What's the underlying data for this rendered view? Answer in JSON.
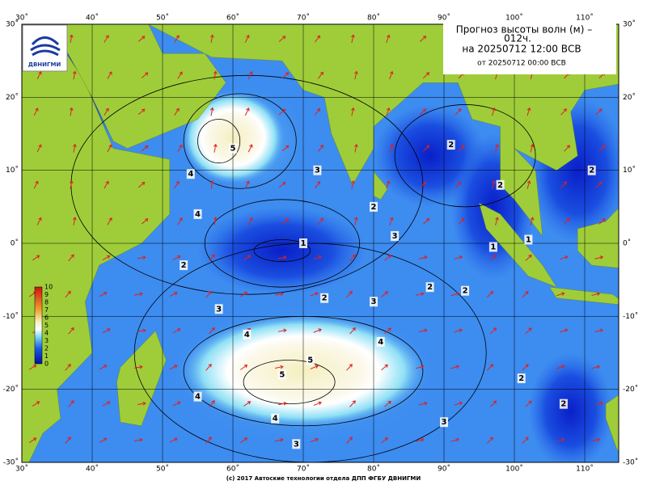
{
  "header": {
    "title_line1": "Прогноз высоты волн (м) –",
    "title_line2": "012ч.",
    "valid": "на 20250712 12:00 ВСВ",
    "issued": "от 20250712 00:00 ВСВ"
  },
  "logo": {
    "text": "ДВНИГМИ"
  },
  "map": {
    "lon_ticks": [
      {
        "value": 30,
        "label": "30˚"
      },
      {
        "value": 40,
        "label": "40˚"
      },
      {
        "value": 50,
        "label": "50˚"
      },
      {
        "value": 60,
        "label": "60˚"
      },
      {
        "value": 70,
        "label": "70˚"
      },
      {
        "value": 80,
        "label": "80˚"
      },
      {
        "value": 90,
        "label": "90˚"
      },
      {
        "value": 100,
        "label": "100˚"
      },
      {
        "value": 110,
        "label": "110˚"
      }
    ],
    "lat_ticks": [
      {
        "value": 30,
        "label": "30˚"
      },
      {
        "value": 20,
        "label": "20˚"
      },
      {
        "value": 10,
        "label": "10˚"
      },
      {
        "value": 0,
        "label": "0˚"
      },
      {
        "value": -10,
        "label": "-10˚"
      },
      {
        "value": -20,
        "label": "-20˚"
      },
      {
        "value": -30,
        "label": "-30˚"
      }
    ],
    "contour_labels": [
      4,
      5,
      4,
      3,
      2,
      2,
      1,
      2,
      3,
      2,
      3,
      4,
      4,
      5,
      5,
      4,
      4,
      3,
      3,
      2,
      2,
      2,
      2,
      1,
      1,
      3,
      2,
      2
    ]
  },
  "colorbar": {
    "labels": [
      10,
      9,
      8,
      7,
      6,
      5,
      4,
      3,
      2,
      1,
      0
    ]
  },
  "footer": "(c) 2017 Автоские технологии отдела ДПП ФГБУ ДВНИГМИ"
}
